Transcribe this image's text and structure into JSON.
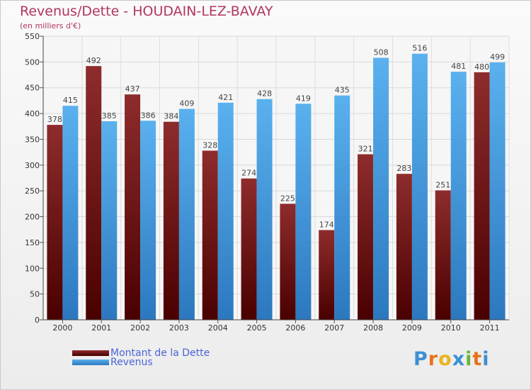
{
  "chart_data": {
    "type": "bar",
    "title": "Revenus/Dette - HOUDAIN-LEZ-BAVAY",
    "subtitle": "(en milliers d'€)",
    "categories": [
      "2000",
      "2001",
      "2002",
      "2003",
      "2004",
      "2005",
      "2006",
      "2007",
      "2008",
      "2009",
      "2010",
      "2011"
    ],
    "series": [
      {
        "name": "Montant de la Dette",
        "color": "#7a1f1f",
        "values": [
          378,
          492,
          437,
          384,
          328,
          274,
          225,
          174,
          321,
          283,
          251,
          480
        ]
      },
      {
        "name": "Revenus",
        "color": "#4ea6e6",
        "values": [
          415,
          385,
          386,
          409,
          421,
          428,
          419,
          435,
          508,
          516,
          481,
          499
        ]
      }
    ],
    "ylim": [
      0,
      550
    ],
    "yticks": [
      0,
      50,
      100,
      150,
      200,
      250,
      300,
      350,
      400,
      450,
      500,
      550
    ],
    "grid": true,
    "legend": "bottom-left"
  },
  "legend": {
    "debt_label": "Montant de la Dette",
    "revenue_label": "Revenus"
  },
  "logo": {
    "letters": [
      "P",
      "r",
      "o",
      "x",
      "i",
      "t",
      "i"
    ],
    "colors": [
      "#3d8fd4",
      "#e8721c",
      "#e8b31c",
      "#3d8fd4",
      "#6ab53a",
      "#e8721c",
      "#3d8fd4"
    ]
  }
}
